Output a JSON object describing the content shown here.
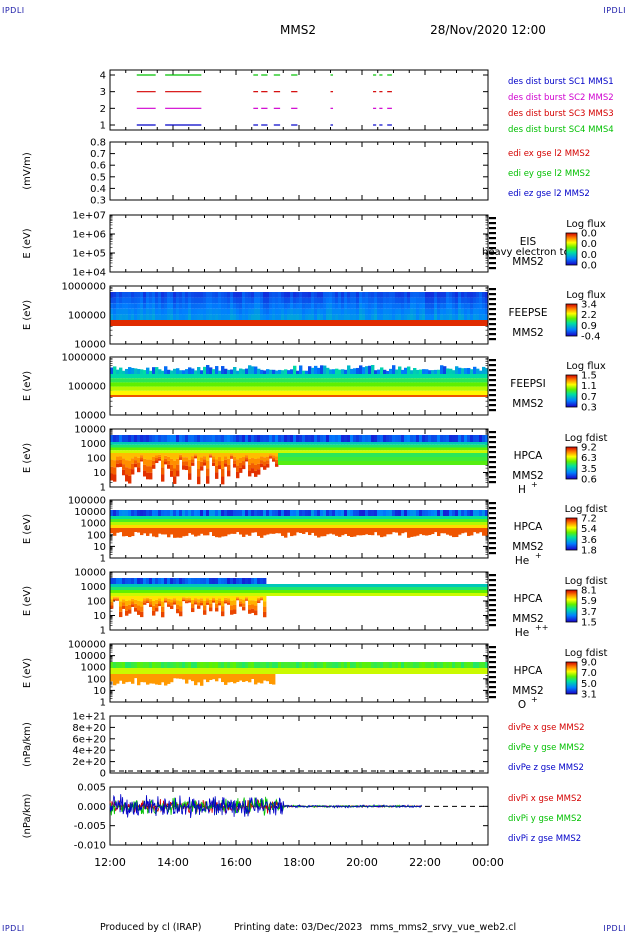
{
  "corner_mark": "IPDLI",
  "header": {
    "spacecraft": "MMS2",
    "datetime": "28/Nov/2020 12:00"
  },
  "footer": {
    "produced_by": "Produced by cl (IRAP)",
    "printing_date": "Printing date: 03/Dec/2023",
    "script": "mms_mms2_srvy_vue_web2.cl"
  },
  "colors": {
    "red": "#d40000",
    "green": "#00c000",
    "blue": "#0000c8",
    "magenta": "#d000d0"
  },
  "chart_data": [
    {
      "type": "line",
      "id": "burst",
      "yticks": [
        "4",
        "3",
        "2",
        "1"
      ],
      "legend": [
        {
          "text": "des dist burst SC1 MMS1",
          "color": "#0000c8"
        },
        {
          "text": "des dist burst SC2 MMS2",
          "color": "#d000d0"
        },
        {
          "text": "des dist burst SC3 MMS3",
          "color": "#d40000"
        },
        {
          "text": "des dist burst SC4 MMS4",
          "color": "#00c000"
        }
      ],
      "intervals_hours": [
        [
          12.85,
          13.45
        ],
        [
          13.75,
          14.9
        ],
        [
          16.55,
          16.7
        ],
        [
          16.8,
          17.0
        ],
        [
          17.2,
          17.4
        ],
        [
          17.75,
          17.95
        ],
        [
          19.0,
          19.08
        ],
        [
          20.35,
          20.45
        ],
        [
          20.55,
          20.65
        ],
        [
          20.8,
          20.95
        ]
      ]
    },
    {
      "type": "line",
      "id": "edi",
      "ylabel": "(mV/m)",
      "yticks": [
        "0.8",
        "0.7",
        "0.6",
        "0.5",
        "0.4",
        "0.3"
      ],
      "legend": [
        {
          "text": "edi ex gse l2 MMS2",
          "color": "#d40000"
        },
        {
          "text": "edi ey gse l2 MMS2",
          "color": "#00c000"
        },
        {
          "text": "edi ez gse l2 MMS2",
          "color": "#0000c8"
        }
      ]
    },
    {
      "type": "heatmap",
      "id": "eis",
      "ylabel": "E (eV)",
      "yticks": [
        "1e+07",
        "1e+06",
        "1e+05",
        "1e+04"
      ],
      "instrument": "EIS",
      "subtitle": "heavy electron to",
      "sc": "MMS2",
      "colorbar_title": "Log flux",
      "colorbar_ticks": [
        "0.0",
        "0.0",
        "0.0",
        "0.0"
      ]
    },
    {
      "type": "heatmap",
      "id": "feepse",
      "ylabel": "E (eV)",
      "yticks": [
        "1000000",
        "100000",
        "10000"
      ],
      "instrument": "FEEPSE",
      "sc": "MMS2",
      "colorbar_title": "Log flux",
      "colorbar_ticks": [
        "3.4",
        "2.2",
        "0.9",
        "-0.4"
      ]
    },
    {
      "type": "heatmap",
      "id": "feepsi",
      "ylabel": "E (eV)",
      "yticks": [
        "1000000",
        "100000",
        "10000"
      ],
      "instrument": "FEEPSI",
      "sc": "MMS2",
      "colorbar_title": "Log flux",
      "colorbar_ticks": [
        "1.5",
        "1.1",
        "0.7",
        "0.3"
      ]
    },
    {
      "type": "heatmap",
      "id": "hpca_h",
      "ylabel": "E (eV)",
      "yticks": [
        "10000",
        "1000",
        "100",
        "10",
        "1"
      ],
      "instrument": "HPCA",
      "sc": "MMS2",
      "species": "H",
      "species_charge": "+",
      "colorbar_title": "Log fdist",
      "colorbar_ticks": [
        "9.2",
        "6.3",
        "3.5",
        "0.6"
      ]
    },
    {
      "type": "heatmap",
      "id": "hpca_he1",
      "ylabel": "E (eV)",
      "yticks": [
        "100000",
        "10000",
        "1000",
        "100",
        "10",
        "1"
      ],
      "instrument": "HPCA",
      "sc": "MMS2",
      "species": "He",
      "species_charge": "+",
      "colorbar_title": "Log fdist",
      "colorbar_ticks": [
        "7.2",
        "5.4",
        "3.6",
        "1.8"
      ]
    },
    {
      "type": "heatmap",
      "id": "hpca_he2",
      "ylabel": "E (eV)",
      "yticks": [
        "10000",
        "1000",
        "100",
        "10",
        "1"
      ],
      "instrument": "HPCA",
      "sc": "MMS2",
      "species": "He",
      "species_charge": "++",
      "colorbar_title": "Log fdist",
      "colorbar_ticks": [
        "8.1",
        "5.9",
        "3.7",
        "1.5"
      ]
    },
    {
      "type": "heatmap",
      "id": "hpca_o",
      "ylabel": "E (eV)",
      "yticks": [
        "100000",
        "10000",
        "1000",
        "100",
        "10",
        "1"
      ],
      "instrument": "HPCA",
      "sc": "MMS2",
      "species": "O",
      "species_charge": "+",
      "colorbar_title": "Log fdist",
      "colorbar_ticks": [
        "9.0",
        "7.0",
        "5.0",
        "3.1"
      ]
    },
    {
      "type": "line",
      "id": "divpe",
      "ylabel": "(nPa/km)",
      "yticks": [
        "1e+21",
        "8e+20",
        "6e+20",
        "4e+20",
        "2e+20",
        "0"
      ],
      "legend": [
        {
          "text": "divPe x gse MMS2",
          "color": "#d40000"
        },
        {
          "text": "divPe y gse MMS2",
          "color": "#00c000"
        },
        {
          "text": "divPe z gse MMS2",
          "color": "#0000c8"
        }
      ]
    },
    {
      "type": "line",
      "id": "divpi",
      "ylabel": "(nPa/km)",
      "yticks": [
        "0.005",
        "0.000",
        "-0.005",
        "-0.010"
      ],
      "legend": [
        {
          "text": "divPi x gse MMS2",
          "color": "#d40000"
        },
        {
          "text": "divPi y gse MMS2",
          "color": "#00c000"
        },
        {
          "text": "divPi z gse MMS2",
          "color": "#0000c8"
        }
      ]
    }
  ],
  "time_axis": {
    "ticks": [
      "12:00",
      "14:00",
      "16:00",
      "18:00",
      "20:00",
      "22:00",
      "00:00"
    ],
    "start_hour": 12,
    "end_hour": 24
  }
}
